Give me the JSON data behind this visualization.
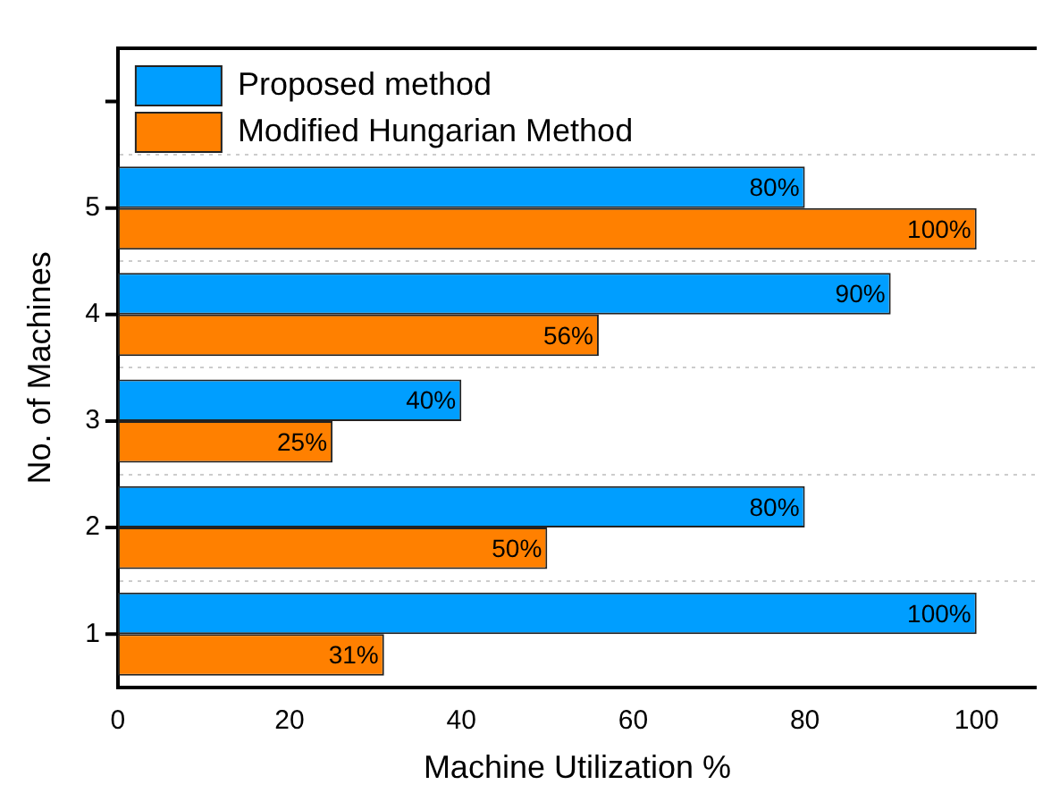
{
  "chart_data": {
    "type": "bar",
    "orientation": "horizontal",
    "xlabel": "Machine Utilization %",
    "ylabel": "No. of Machines",
    "categories": [
      null,
      "5",
      "4",
      "3",
      "2",
      "1"
    ],
    "series": [
      {
        "name": "Proposed method",
        "color": "#009eff",
        "values": [
          null,
          80,
          90,
          40,
          80,
          100
        ],
        "value_labels": [
          null,
          "80%",
          "90%",
          "40%",
          "80%",
          "100%"
        ]
      },
      {
        "name": "Modified Hungarian Method",
        "color": "#ff8000",
        "values": [
          null,
          100,
          56,
          25,
          50,
          31
        ],
        "value_labels": [
          null,
          "100%",
          "56%",
          "25%",
          "50%",
          "31%"
        ]
      }
    ],
    "xlim": [
      0,
      107
    ],
    "xticks": [
      0,
      20,
      40,
      60,
      80,
      100
    ],
    "grid": "y",
    "legend": "top left"
  }
}
